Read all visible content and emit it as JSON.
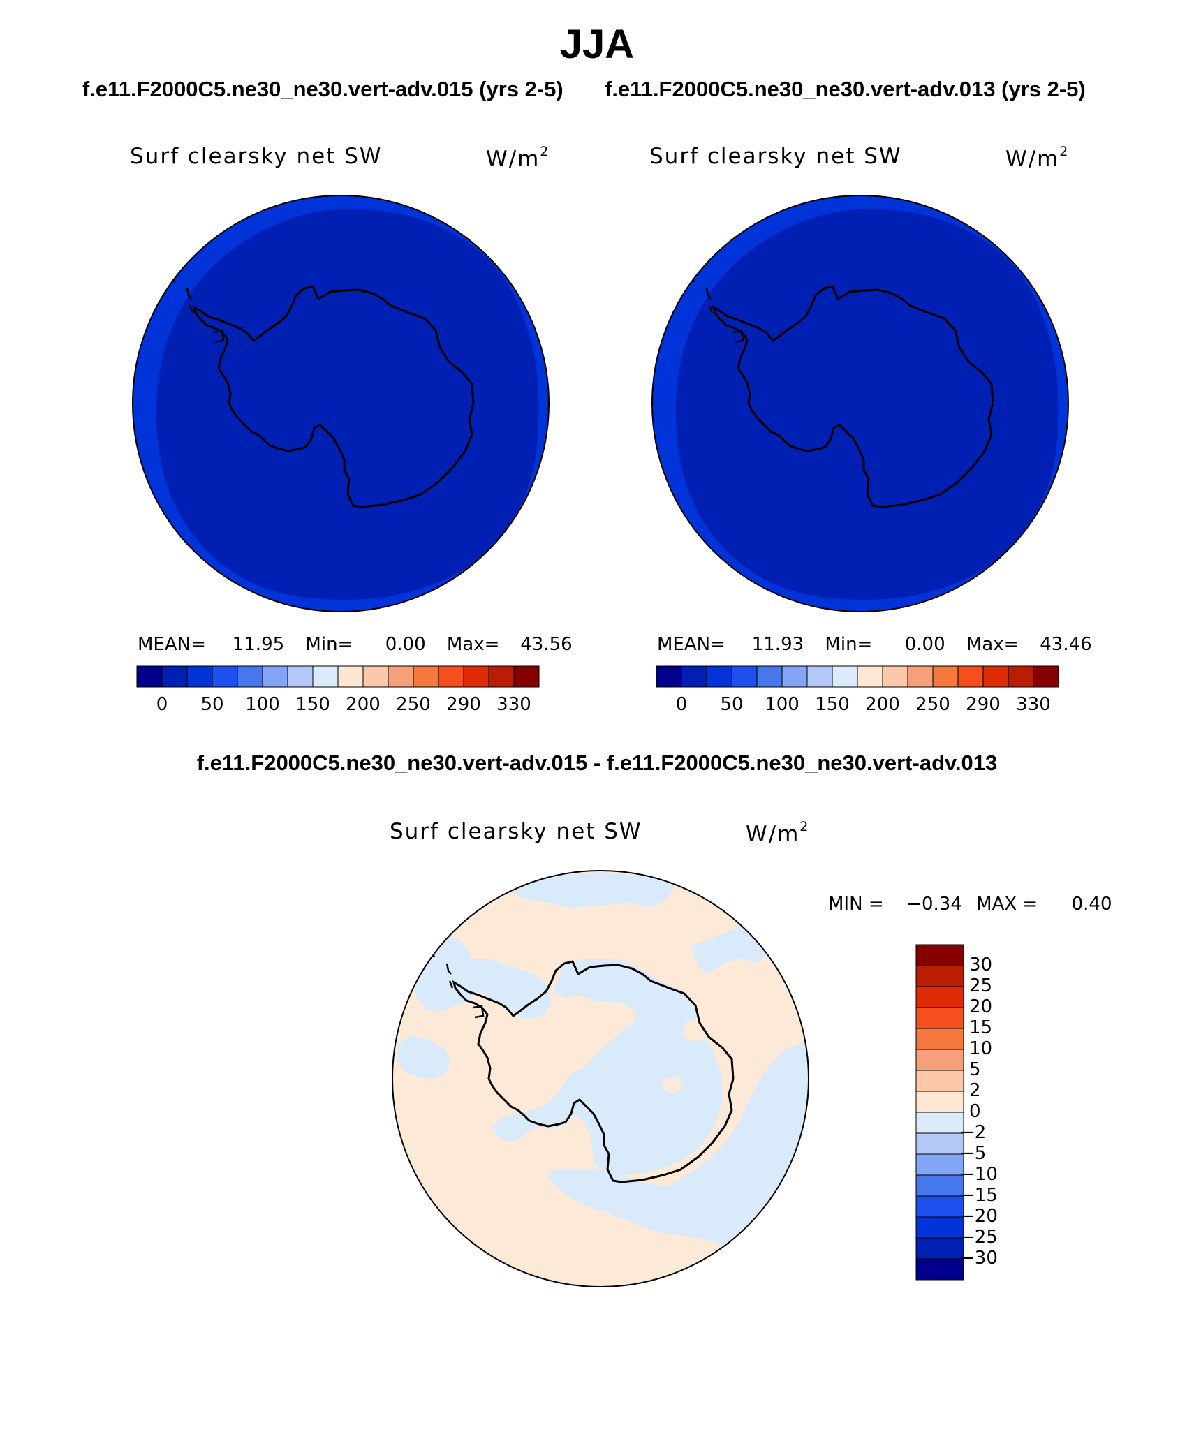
{
  "figure": {
    "title": "JJA",
    "left_case_title": "f.e11.F2000C5.ne30_ne30.vert-adv.015 (yrs 2-5)",
    "right_case_title": "f.e11.F2000C5.ne30_ne30.vert-adv.013 (yrs 2-5)",
    "diff_title": "f.e11.F2000C5.ne30_ne30.vert-adv.015 - f.e11.F2000C5.ne30_ne30.vert-adv.013"
  },
  "panels": {
    "left": {
      "variable": "Surf clearsky net SW",
      "units_base": "W/m",
      "units_sup": "2",
      "mean_label": "MEAN=",
      "mean_value": "11.95",
      "min_label": "Min=",
      "min_value": "0.00",
      "max_label": "Max=",
      "max_value": "43.56"
    },
    "right": {
      "variable": "Surf clearsky net SW",
      "units_base": "W/m",
      "units_sup": "2",
      "mean_label": "MEAN=",
      "mean_value": "11.93",
      "min_label": "Min=",
      "min_value": "0.00",
      "max_label": "Max=",
      "max_value": "43.46"
    },
    "diff": {
      "variable": "Surf clearsky net SW",
      "units_base": "W/m",
      "units_sup": "2",
      "min_label": "MIN =",
      "min_value": "−0.34",
      "max_label": "MAX =",
      "max_value": "0.40"
    }
  },
  "colorbar_abs": {
    "ticks": [
      "0",
      "50",
      "100",
      "150",
      "200",
      "250",
      "290",
      "330"
    ],
    "colors": [
      "#00008c",
      "#0020b4",
      "#0034d8",
      "#1e50f0",
      "#4678ec",
      "#82a5f5",
      "#b4c8f8",
      "#dcebfc",
      "#fde6d2",
      "#fbc8aa",
      "#f6a07a",
      "#f5783e",
      "#f64f1e",
      "#df2b06",
      "#b91e05",
      "#870000"
    ]
  },
  "colorbar_diff": {
    "labels": [
      "30",
      "25",
      "20",
      "15",
      "10",
      "5",
      "2",
      "0",
      "−2",
      "−5",
      "−10",
      "−15",
      "−20",
      "−25",
      "−30"
    ],
    "colors_top_to_bottom": [
      "#870000",
      "#b91e05",
      "#df2b06",
      "#f64f1e",
      "#f5783e",
      "#f6a07a",
      "#fbc8aa",
      "#fde6d2",
      "#dcebfc",
      "#b4c8f8",
      "#82a5f5",
      "#4678ec",
      "#1e50f0",
      "#0034d8",
      "#0020b4",
      "#00008c"
    ]
  },
  "map_colors": {
    "abs_outer": "#0034d8",
    "abs_inner": "#0020b4",
    "diff_positive": "#fde9d7",
    "diff_negative": "#d9ebfb"
  }
}
